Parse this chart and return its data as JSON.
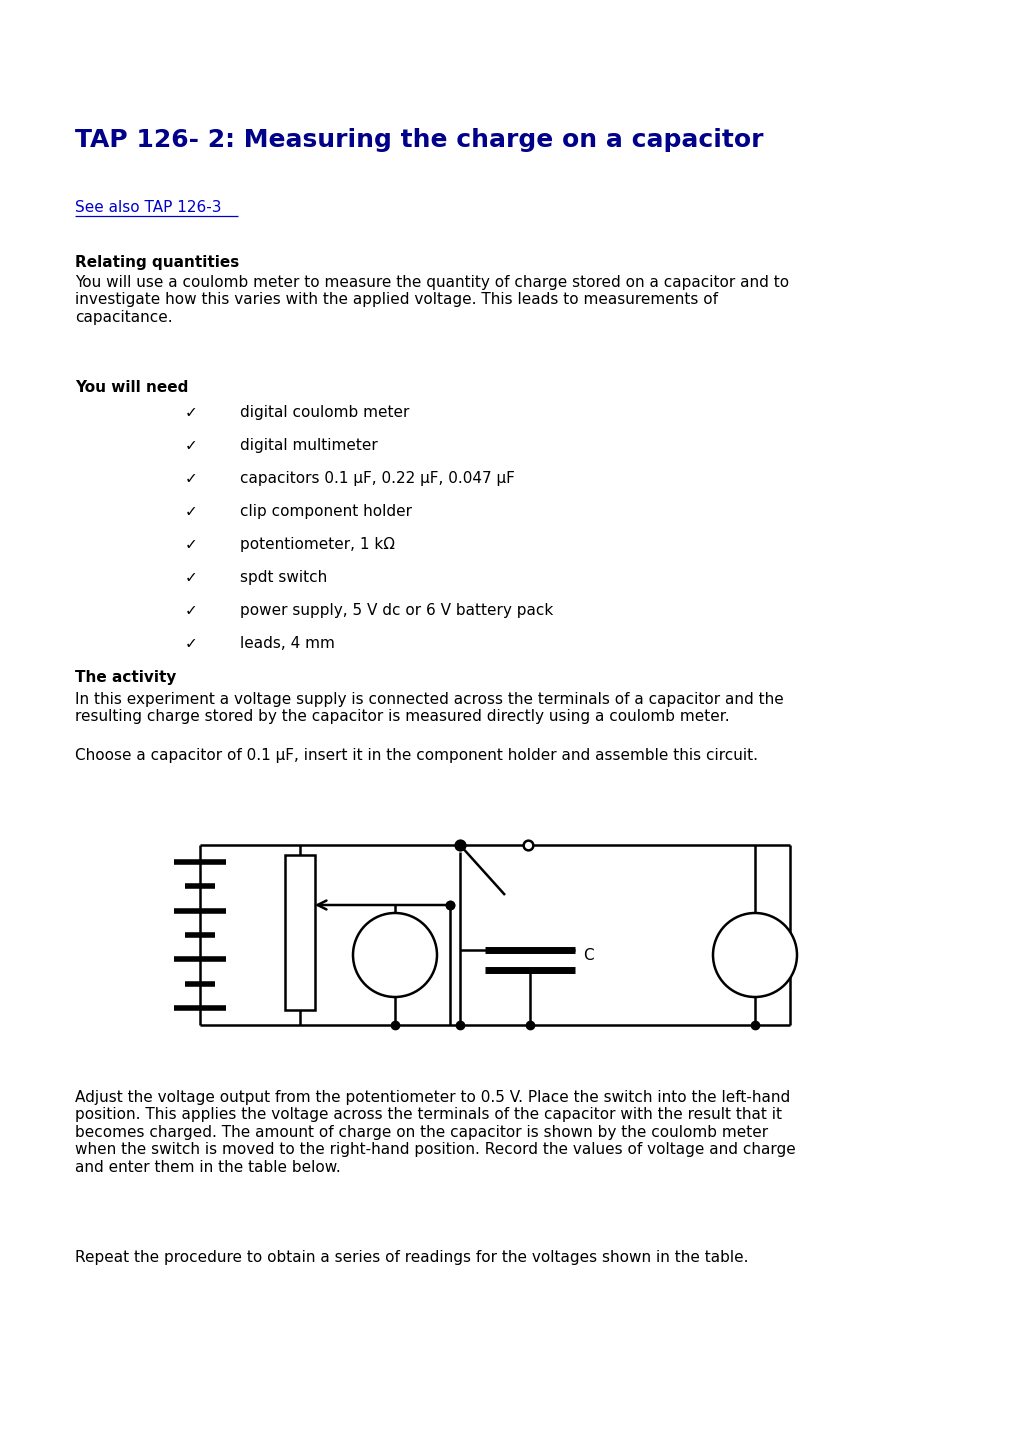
{
  "title": "TAP 126- 2: Measuring the charge on a capacitor",
  "title_color": "#00008B",
  "title_fontsize": 18,
  "link_text": "See also TAP 126-3",
  "link_color": "#0000CD",
  "section1_title": "Relating quantities",
  "section1_body": "You will use a coulomb meter to measure the quantity of charge stored on a capacitor and to\ninvestigate how this varies with the applied voltage. This leads to measurements of\ncapacitance.",
  "section2_title": "You will need",
  "items": [
    "digital coulomb meter",
    "digital multimeter",
    "capacitors 0.1 μF, 0.22 μF, 0.047 μF",
    "clip component holder",
    "potentiometer, 1 kΩ",
    "spdt switch",
    "power supply, 5 V dc or 6 V battery pack",
    "leads, 4 mm"
  ],
  "section3_title": "The activity",
  "section3_body1": "In this experiment a voltage supply is connected across the terminals of a capacitor and the\nresulting charge stored by the capacitor is measured directly using a coulomb meter.",
  "section3_body2": "Choose a capacitor of 0.1 μF, insert it in the component holder and assemble this circuit.",
  "section4_body1": "Adjust the voltage output from the potentiometer to 0.5 V. Place the switch into the left-hand\nposition. This applies the voltage across the terminals of the capacitor with the result that it\nbecomes charged. The amount of charge on the capacitor is shown by the coulomb meter\nwhen the switch is moved to the right-hand position. Record the values of voltage and charge\nand enter them in the table below.",
  "section4_body2": "Repeat the procedure to obtain a series of readings for the voltages shown in the table.",
  "bg_color": "#FFFFFF",
  "text_color": "#000000",
  "body_fontsize": 11,
  "section_title_fontsize": 11
}
